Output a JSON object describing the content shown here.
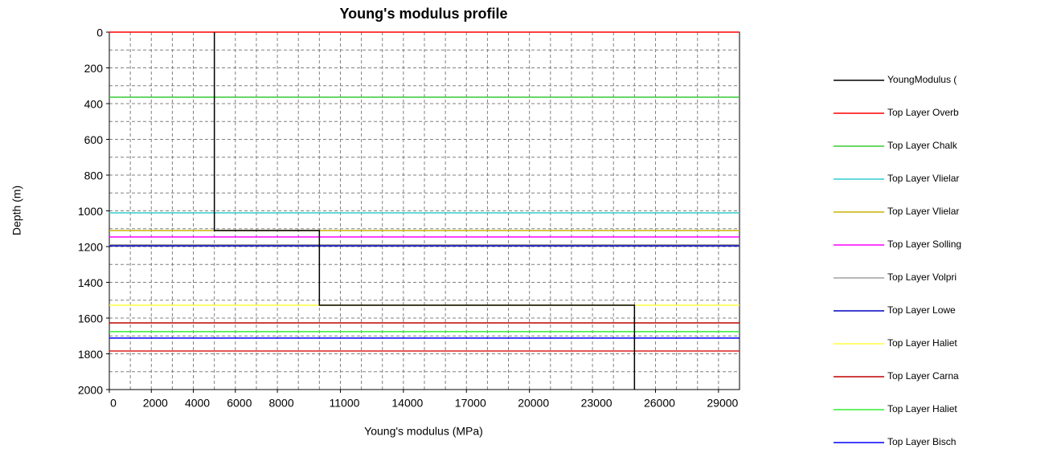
{
  "chart_data": {
    "type": "line",
    "title": "Young's modulus profile",
    "x_label": "Young's modulus (MPa)",
    "y_label": "Depth (m)",
    "xlim": [
      0,
      30000
    ],
    "ylim": [
      0,
      2000
    ],
    "y_inverted": true,
    "xticks": [
      0,
      2000,
      4000,
      6000,
      8000,
      11000,
      14000,
      17000,
      20000,
      23000,
      26000,
      29000
    ],
    "yticks": [
      0,
      200,
      400,
      600,
      800,
      1000,
      1200,
      1400,
      1600,
      1800,
      2000
    ],
    "x_gridlines": [
      0,
      1000,
      2000,
      3000,
      4000,
      5000,
      6000,
      7000,
      8000,
      9000,
      10000,
      11000,
      12000,
      13000,
      14000,
      15000,
      16000,
      17000,
      18000,
      19000,
      20000,
      21000,
      22000,
      23000,
      24000,
      25000,
      26000,
      27000,
      28000,
      29000,
      30000
    ],
    "y_gridlines": [
      0,
      100,
      200,
      300,
      400,
      500,
      600,
      700,
      800,
      900,
      1000,
      1100,
      1200,
      1300,
      1400,
      1500,
      1600,
      1700,
      1800,
      1900,
      2000
    ],
    "grid": true,
    "legend": "right",
    "series": [
      {
        "name": "Top Layer Overb",
        "color": "#ff0000",
        "x": [
          0,
          30000
        ],
        "values": [
          0,
          0
        ]
      },
      {
        "name": "Top Layer Chalk",
        "color": "#33cc33",
        "x": [
          0,
          30000
        ],
        "values": [
          364,
          364
        ]
      },
      {
        "name": "Top Layer Vlielar",
        "color": "#33cccc",
        "x": [
          0,
          30000
        ],
        "values": [
          1011,
          1011
        ]
      },
      {
        "name": "Top Layer Vlielar",
        "color": "#c8b400",
        "x": [
          0,
          30000
        ],
        "values": [
          1110,
          1110
        ]
      },
      {
        "name": "Top Layer Solling",
        "color": "#ff00ff",
        "x": [
          0,
          30000
        ],
        "values": [
          1146,
          1146
        ]
      },
      {
        "name": "Top Layer Volpri",
        "color": "#a0a0a0",
        "x": [
          0,
          30000
        ],
        "values": [
          1190,
          1190
        ]
      },
      {
        "name": "Top Layer Lowe",
        "color": "#0000c0",
        "x": [
          0,
          30000
        ],
        "values": [
          1196,
          1196
        ]
      },
      {
        "name": "Top Layer Haliet",
        "color": "#ffff40",
        "x": [
          0,
          30000
        ],
        "values": [
          1528,
          1528
        ]
      },
      {
        "name": "Top Layer Carna",
        "color": "#c00000",
        "x": [
          0,
          30000
        ],
        "values": [
          1627,
          1627
        ]
      },
      {
        "name": "Top Layer Haliet",
        "color": "#33ee33",
        "x": [
          0,
          30000
        ],
        "values": [
          1676,
          1676
        ]
      },
      {
        "name": "Top Layer Bisch",
        "color": "#0000ff",
        "x": [
          0,
          30000
        ],
        "values": [
          1712,
          1712
        ]
      },
      {
        "name": null,
        "color": "#dd2222",
        "x": [
          0,
          30000
        ],
        "values": [
          1784,
          1784
        ]
      },
      {
        "name": "YoungModulus (",
        "color": "#000000",
        "x": [
          5000,
          5000,
          10000,
          10000,
          25000,
          25000
        ],
        "values": [
          0,
          1110,
          1110,
          1528,
          1528,
          2000
        ]
      }
    ],
    "legend_order": [
      12,
      0,
      1,
      2,
      3,
      4,
      5,
      6,
      7,
      8,
      9,
      10
    ]
  }
}
